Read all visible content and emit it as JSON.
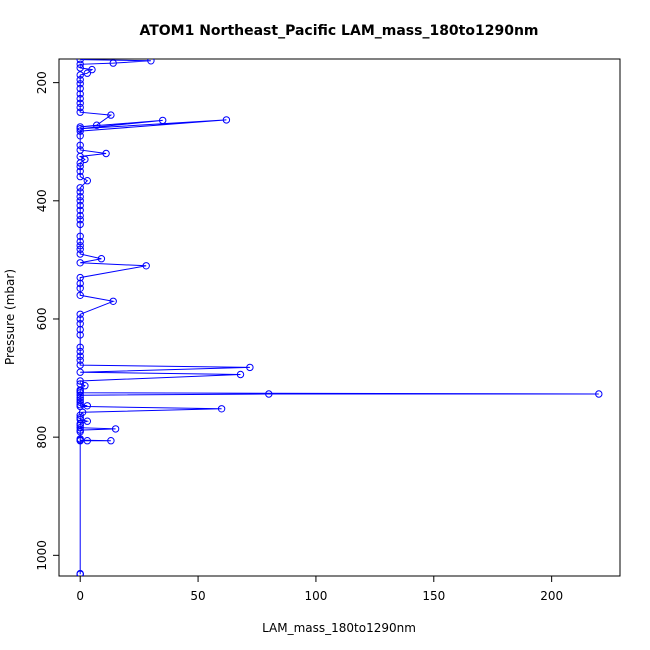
{
  "chart_data": {
    "type": "line",
    "title": "ATOM1 Northeast_Pacific LAM_mass_180to1290nm",
    "xlabel": "LAM_mass_180to1290nm",
    "ylabel": "Pressure (mbar)",
    "xlim": [
      -9,
      229
    ],
    "ylim": [
      1035,
      160
    ],
    "y_reversed": true,
    "xticks": [
      0,
      50,
      100,
      150,
      200
    ],
    "yticks": [
      200,
      400,
      600,
      800,
      1000
    ],
    "grid": false,
    "series": [
      {
        "color": "#0000ff",
        "marker": "open-circle",
        "points": [
          [
            0,
            1032
          ],
          [
            0,
            1031
          ],
          [
            0,
            806
          ],
          [
            3,
            806
          ],
          [
            13,
            806
          ],
          [
            0,
            805
          ],
          [
            0,
            803
          ],
          [
            0,
            791
          ],
          [
            0,
            788
          ],
          [
            15,
            786
          ],
          [
            0,
            784
          ],
          [
            0,
            780
          ],
          [
            0,
            777
          ],
          [
            3,
            773
          ],
          [
            0,
            770
          ],
          [
            0,
            767
          ],
          [
            0,
            763
          ],
          [
            1,
            758
          ],
          [
            60,
            752
          ],
          [
            0,
            748
          ],
          [
            3,
            747
          ],
          [
            0,
            745
          ],
          [
            0,
            741
          ],
          [
            0,
            737
          ],
          [
            0,
            733
          ],
          [
            0,
            729
          ],
          [
            80,
            727
          ],
          [
            220,
            727
          ],
          [
            0,
            725
          ],
          [
            0,
            722
          ],
          [
            0,
            720
          ],
          [
            2,
            713
          ],
          [
            0,
            710
          ],
          [
            0,
            705
          ],
          [
            68,
            694
          ],
          [
            0,
            690
          ],
          [
            72,
            682
          ],
          [
            0,
            678
          ],
          [
            0,
            670
          ],
          [
            0,
            663
          ],
          [
            0,
            655
          ],
          [
            0,
            648
          ],
          [
            0,
            627
          ],
          [
            0,
            618
          ],
          [
            0,
            608
          ],
          [
            0,
            600
          ],
          [
            0,
            592
          ],
          [
            14,
            570
          ],
          [
            0,
            560
          ],
          [
            0,
            548
          ],
          [
            0,
            540
          ],
          [
            0,
            530
          ],
          [
            28,
            510
          ],
          [
            0,
            505
          ],
          [
            9,
            498
          ],
          [
            0,
            490
          ],
          [
            0,
            482
          ],
          [
            0,
            476
          ],
          [
            0,
            469
          ],
          [
            0,
            460
          ],
          [
            0,
            440
          ],
          [
            0,
            432
          ],
          [
            0,
            425
          ],
          [
            0,
            416
          ],
          [
            0,
            408
          ],
          [
            0,
            400
          ],
          [
            0,
            393
          ],
          [
            0,
            385
          ],
          [
            0,
            378
          ],
          [
            3,
            366
          ],
          [
            0,
            359
          ],
          [
            0,
            350
          ],
          [
            0,
            342
          ],
          [
            0,
            336
          ],
          [
            2,
            330
          ],
          [
            0,
            325
          ],
          [
            11,
            320
          ],
          [
            0,
            314
          ],
          [
            0,
            306
          ],
          [
            0,
            290
          ],
          [
            0,
            282
          ],
          [
            62,
            263
          ],
          [
            0,
            278
          ],
          [
            35,
            264
          ],
          [
            0,
            275
          ],
          [
            7,
            272
          ],
          [
            13,
            255
          ],
          [
            0,
            250
          ],
          [
            0,
            242
          ],
          [
            0,
            235
          ],
          [
            0,
            227
          ],
          [
            0,
            219
          ],
          [
            0,
            210
          ],
          [
            0,
            202
          ],
          [
            0,
            195
          ],
          [
            0,
            187
          ],
          [
            3,
            184
          ],
          [
            5,
            178
          ],
          [
            0,
            175
          ],
          [
            0,
            169
          ],
          [
            14,
            167
          ],
          [
            30,
            163
          ],
          [
            0,
            161
          ]
        ]
      }
    ]
  }
}
